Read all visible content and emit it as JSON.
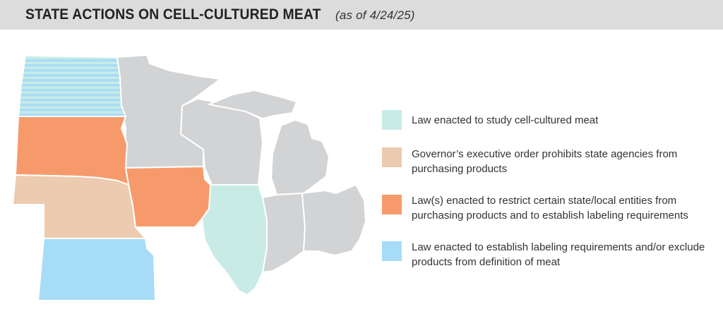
{
  "header": {
    "title": "STATE ACTIONS ON CELL-CULTURED MEAT",
    "date_note": "(as of 4/24/25)"
  },
  "colors": {
    "title_bar": "#dcdcdd",
    "no_action": "#d2d3d5",
    "study": "#c8ebe6",
    "executive_order": "#eccbb0",
    "procurement_and_labeling": "#f79a6b",
    "labeling_definition": "#a7dcf7",
    "study_stripe": "#a7dcf7"
  },
  "legend": [
    {
      "key": "study",
      "label": "Law enacted to study cell-cultured meat",
      "color": "#c8ebe6"
    },
    {
      "key": "executive_order",
      "label": "Governor’s executive order prohibits state agencies from purchasing products",
      "color": "#eccbb0"
    },
    {
      "key": "procurement_and_labeling",
      "label": "Law(s) enacted to restrict certain state/local entities from purchasing products and to establish labeling requirements",
      "color": "#f79a6b"
    },
    {
      "key": "labeling_definition",
      "label": "Law enacted to establish labeling requirements and/or exclude products from definition of meat",
      "color": "#a7dcf7"
    }
  ],
  "states": [
    {
      "id": "north-dakota",
      "status": "study_and_labeling",
      "fill": "striped"
    },
    {
      "id": "south-dakota",
      "status": "procurement_and_labeling"
    },
    {
      "id": "nebraska",
      "status": "executive_order"
    },
    {
      "id": "kansas",
      "status": "labeling_definition"
    },
    {
      "id": "minnesota",
      "status": "none"
    },
    {
      "id": "iowa",
      "status": "procurement_and_labeling"
    },
    {
      "id": "wisconsin",
      "status": "none"
    },
    {
      "id": "illinois",
      "status": "study"
    },
    {
      "id": "michigan",
      "status": "none"
    },
    {
      "id": "indiana",
      "status": "none"
    },
    {
      "id": "ohio",
      "status": "none"
    }
  ]
}
